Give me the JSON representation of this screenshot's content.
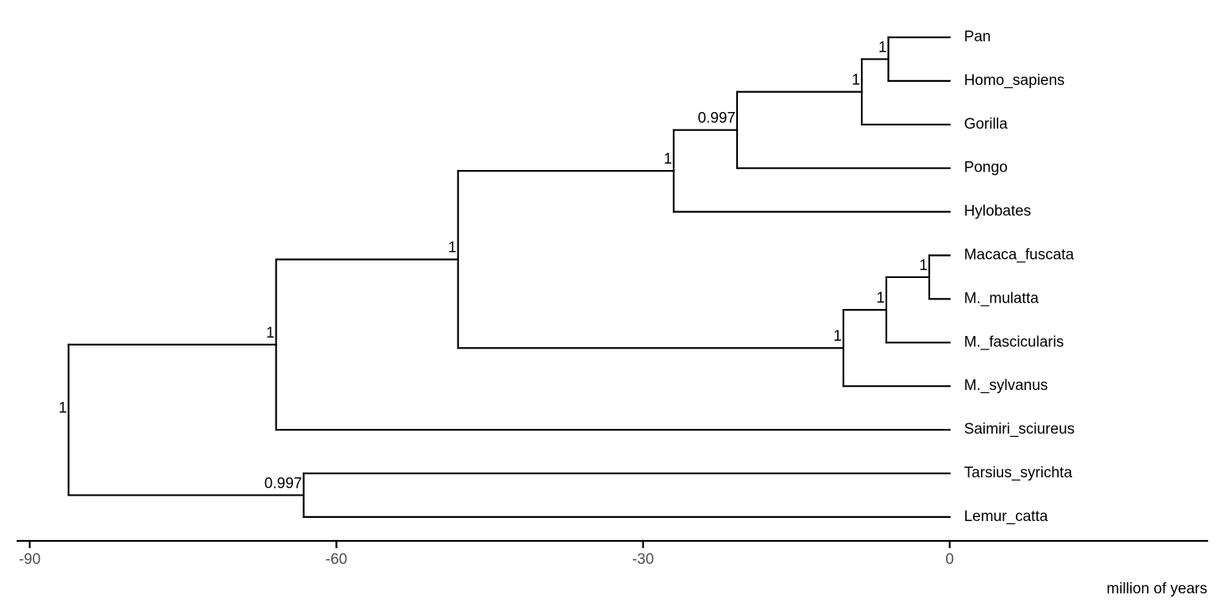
{
  "chart_data": {
    "type": "tree",
    "x_label": "million of years",
    "xlim": [
      -91.2,
      25.2
    ],
    "xticks": [
      -90,
      -60,
      -30,
      0
    ],
    "tree": {
      "age": -86.2,
      "support": 1,
      "children": [
        {
          "age": -65.9,
          "support": 1,
          "children": [
            {
              "age": -48.1,
              "support": 1,
              "children": [
                {
                  "age": -27.0,
                  "support": 1,
                  "children": [
                    {
                      "age": -20.8,
                      "support": 0.997,
                      "children": [
                        {
                          "age": -8.6,
                          "support": 1,
                          "children": [
                            {
                              "age": -6.0,
                              "support": 1,
                              "children": [
                                {
                                  "name": "Pan",
                                  "age": 0
                                },
                                {
                                  "name": "Homo_sapiens",
                                  "age": 0
                                }
                              ]
                            },
                            {
                              "name": "Gorilla",
                              "age": 0
                            }
                          ]
                        },
                        {
                          "name": "Pongo",
                          "age": 0
                        }
                      ]
                    },
                    {
                      "name": "Hylobates",
                      "age": 0
                    }
                  ]
                },
                {
                  "age": -10.4,
                  "support": 1,
                  "children": [
                    {
                      "age": -6.2,
                      "support": 1,
                      "children": [
                        {
                          "age": -2.0,
                          "support": 1,
                          "children": [
                            {
                              "name": "Macaca_fuscata",
                              "age": 0
                            },
                            {
                              "name": "M._mulatta",
                              "age": 0
                            }
                          ]
                        },
                        {
                          "name": "M._fascicularis",
                          "age": 0
                        }
                      ]
                    },
                    {
                      "name": "M._sylvanus",
                      "age": 0
                    }
                  ]
                }
              ]
            },
            {
              "name": "Saimiri_sciureus",
              "age": 0
            }
          ]
        },
        {
          "age": -63.2,
          "support": 0.997,
          "children": [
            {
              "name": "Tarsius_syrichta",
              "age": 0
            },
            {
              "name": "Lemur_catta",
              "age": 0
            }
          ]
        }
      ]
    }
  }
}
